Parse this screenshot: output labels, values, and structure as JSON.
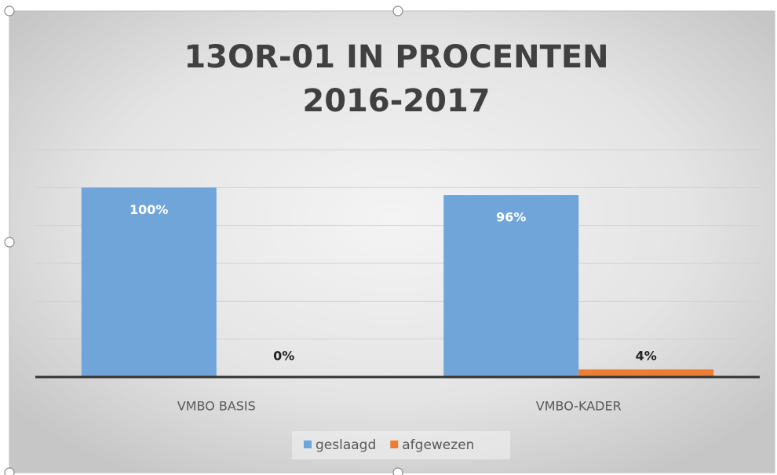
{
  "chart_data": {
    "type": "bar",
    "title": [
      "13OR-01 IN PROCENTEN",
      "2016-2017"
    ],
    "categories": [
      "VMBO BASIS",
      "VMBO-KADER"
    ],
    "series": [
      {
        "name": "geslaagd",
        "color": "#6fa5d9",
        "values": [
          100,
          96
        ],
        "value_labels": [
          "100%",
          "96%"
        ]
      },
      {
        "name": "afgewezen",
        "color": "#ed7d31",
        "values": [
          0,
          4
        ],
        "value_labels": [
          "0%",
          "4%"
        ]
      }
    ],
    "ylim": [
      0,
      120
    ],
    "yticks": [
      0,
      20,
      40,
      60,
      80,
      100,
      120
    ],
    "grid": true,
    "y_tick_labels": false,
    "legend": "bottom"
  }
}
